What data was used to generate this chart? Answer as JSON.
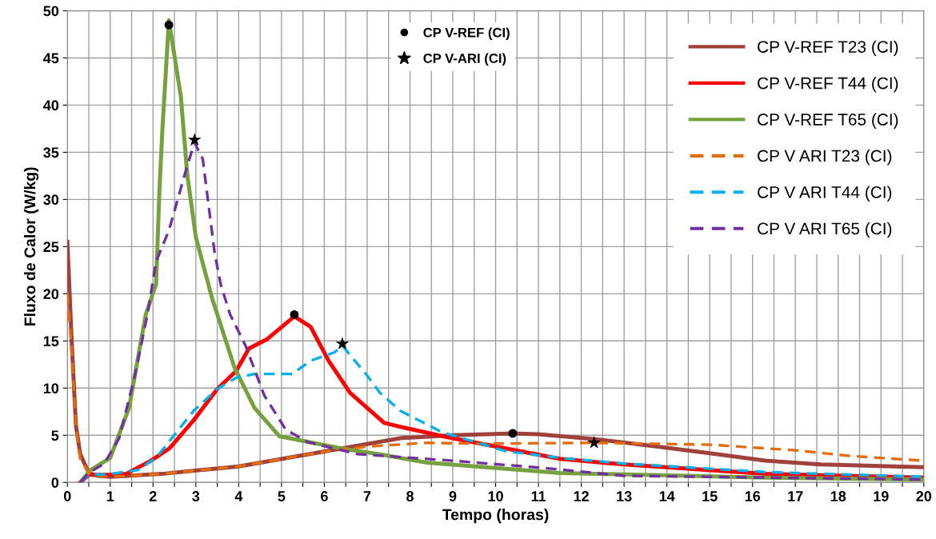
{
  "chart_data": {
    "type": "line",
    "xlabel": "Tempo (horas)",
    "ylabel": "Fluxo de Calor (W/kg)",
    "xlim": [
      0,
      20
    ],
    "ylim": [
      0,
      50
    ],
    "xticks": [
      0,
      {
        "value": 0.5,
        "label": null
      },
      1,
      {
        "value": 1.5,
        "label": null
      },
      2,
      {
        "value": 2.5,
        "label": null
      },
      3,
      {
        "value": 3.5,
        "label": null
      },
      4,
      {
        "value": 4.5,
        "label": null
      },
      5,
      {
        "value": 5.5,
        "label": null
      },
      6,
      {
        "value": 6.5,
        "label": null
      },
      7,
      {
        "value": 7.5,
        "label": null
      },
      8,
      {
        "value": 8.5,
        "label": null
      },
      9,
      {
        "value": 9.5,
        "label": null
      },
      10,
      {
        "value": 10.5,
        "label": null
      },
      11,
      {
        "value": 11.5,
        "label": null
      },
      12,
      {
        "value": 12.5,
        "label": null
      },
      13,
      {
        "value": 13.5,
        "label": null
      },
      14,
      {
        "value": 14.5,
        "label": null
      },
      15,
      {
        "value": 15.5,
        "label": null
      },
      16,
      {
        "value": 16.5,
        "label": null
      },
      17,
      {
        "value": 17.5,
        "label": null
      },
      18,
      {
        "value": 18.5,
        "label": null
      },
      19,
      {
        "value": 19.5,
        "label": null
      },
      20
    ],
    "yticks": [
      0,
      5,
      10,
      15,
      20,
      25,
      30,
      35,
      40,
      45,
      50
    ],
    "grid": true,
    "legend": "top right",
    "series": [
      {
        "name": "CP V-REF T23 (CI)",
        "color": "#a0413c",
        "line_style": "solid",
        "x": [
          0,
          0.1,
          0.2,
          0.3,
          0.5,
          0.7,
          1,
          2.2,
          4,
          5.9,
          7.8,
          9,
          10.4,
          11,
          12.3,
          13.6,
          15,
          16.3,
          17.6,
          20
        ],
        "values": [
          25.5,
          15,
          6,
          3,
          1,
          0.7,
          0.6,
          0.9,
          1.7,
          3.2,
          4.7,
          5.0,
          5.2,
          5.1,
          4.6,
          3.9,
          3.1,
          2.3,
          1.9,
          1.6
        ]
      },
      {
        "name": "CP V-REF T44 (CI)",
        "color": "#ff0000",
        "line_style": "solid",
        "x": [
          0.3,
          0.5,
          1,
          1.37,
          1.95,
          2.38,
          2.95,
          3.5,
          3.94,
          4.24,
          4.67,
          5.3,
          5.68,
          6.1,
          6.6,
          7.4,
          7.77,
          8.76,
          11.5,
          13,
          16.3,
          20
        ],
        "values": [
          0,
          0.8,
          0.8,
          0.9,
          2.3,
          3.6,
          6.6,
          9.9,
          11.8,
          14.2,
          15.2,
          17.6,
          16.5,
          12.9,
          9.5,
          6.3,
          5.9,
          4.9,
          2.5,
          1.9,
          0.9,
          0.5
        ]
      },
      {
        "name": "CP V-REF T65 (CI)",
        "color": "#77a03f",
        "line_style": "solid",
        "x": [
          0.3,
          0.54,
          1.0,
          1.44,
          1.83,
          2.07,
          2.15,
          2.22,
          2.37,
          2.65,
          2.8,
          3.0,
          3.38,
          3.9,
          4.37,
          4.95,
          6.4,
          7.4,
          8.4,
          11.5,
          16.3,
          20
        ],
        "values": [
          0,
          1.3,
          2.6,
          7.9,
          17.8,
          21,
          31,
          37.5,
          49,
          40.9,
          32.6,
          26,
          19.5,
          12.2,
          7.9,
          4.9,
          3.6,
          2.9,
          2.1,
          1.0,
          0.5,
          0.3
        ]
      },
      {
        "name": "CP V ARI T23 (CI)",
        "color": "#e46c0a",
        "line_style": "dashed",
        "x": [
          0,
          0.1,
          0.2,
          0.3,
          0.5,
          0.7,
          1,
          2.2,
          4,
          5.9,
          7,
          8.4,
          9.6,
          12.3,
          15,
          17,
          18.3,
          20
        ],
        "values": [
          20,
          14,
          6,
          2.5,
          1,
          0.7,
          0.6,
          0.9,
          1.7,
          3.2,
          3.8,
          4.2,
          4.1,
          4.2,
          4.0,
          3.4,
          2.8,
          2.3
        ]
      },
      {
        "name": "CP V ARI T44 (CI)",
        "color": "#00b0f0",
        "line_style": "dashed",
        "x": [
          0.3,
          0.5,
          1,
          1.64,
          2.07,
          2.95,
          3.5,
          3.94,
          4.37,
          4.8,
          5.25,
          5.68,
          6.24,
          6.42,
          6.97,
          7.3,
          7.77,
          8.76,
          10.25,
          11.5,
          13,
          16.3,
          20
        ],
        "values": [
          0,
          0.8,
          0.9,
          1.3,
          2.6,
          7.6,
          9.9,
          11.1,
          11.5,
          11.5,
          11.5,
          12.9,
          13.8,
          14.5,
          11.5,
          9.5,
          7.6,
          5.3,
          3.3,
          2.6,
          2.0,
          1.1,
          0.6
        ]
      },
      {
        "name": "CP V ARI T65 (CI)",
        "color": "#7030a0",
        "line_style": "dashed",
        "x": [
          0.3,
          0.5,
          0.86,
          1.21,
          1.57,
          1.87,
          2.07,
          2.37,
          2.8,
          2.97,
          3.16,
          3.3,
          3.44,
          3.58,
          3.8,
          4.16,
          4.6,
          5.1,
          5.6,
          6.78,
          9.0,
          11.2,
          13,
          20
        ],
        "values": [
          0,
          1,
          2.0,
          4.7,
          11.2,
          17.8,
          23.4,
          26.7,
          33.6,
          36,
          34.3,
          29.3,
          24.3,
          21,
          17.8,
          14.5,
          9.2,
          5.6,
          4.3,
          3.0,
          2.3,
          1.5,
          0.7,
          0.3
        ]
      },
      {
        "name": "CP V-REF (CI)",
        "type": "scatter",
        "color": "#000000",
        "marker": "circle",
        "x": [
          2.37,
          5.3,
          10.4
        ],
        "values": [
          48.5,
          17.8,
          5.2
        ]
      },
      {
        "name": "CP V-ARI (CI)",
        "type": "scatter",
        "color": "#000000",
        "marker": "star",
        "x": [
          2.97,
          6.42,
          12.3
        ],
        "values": [
          36.3,
          14.7,
          4.2
        ]
      }
    ]
  }
}
